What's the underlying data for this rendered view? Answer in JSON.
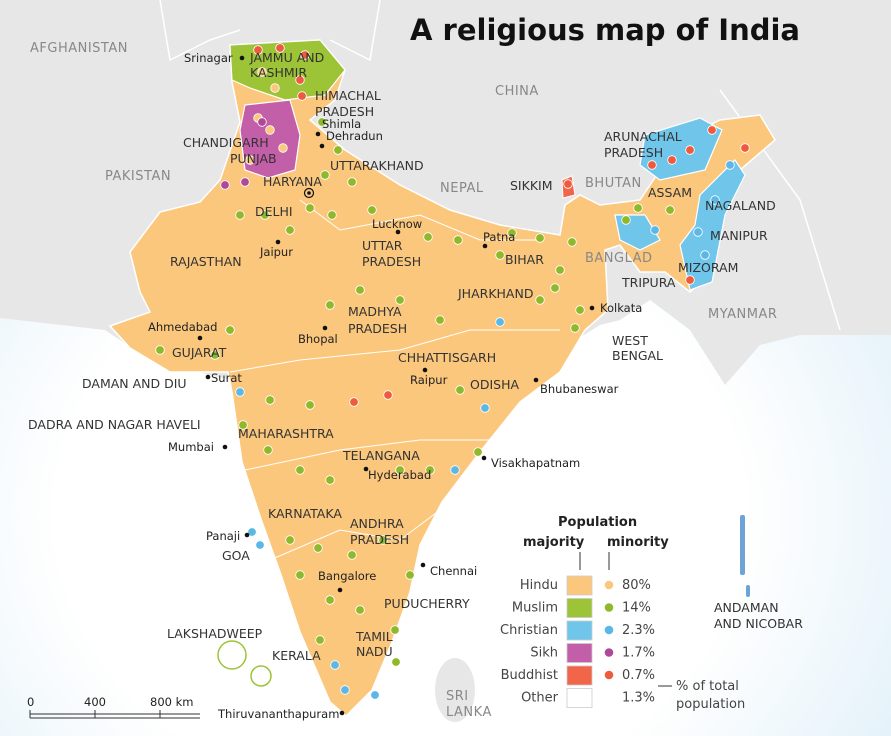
{
  "title": "A religious map of India",
  "countries": [
    {
      "lines": [
        "AFGHANISTAN"
      ]
    },
    {
      "lines": [
        "PAKISTAN"
      ]
    },
    {
      "lines": [
        "CHINA"
      ]
    },
    {
      "lines": [
        "NEPAL"
      ]
    },
    {
      "lines": [
        "BHUTAN"
      ]
    },
    {
      "lines": [
        "BANGLAD"
      ]
    },
    {
      "lines": [
        "MYANMAR"
      ]
    },
    {
      "lines": [
        "SRI",
        "LANKA"
      ]
    }
  ],
  "states": [
    {
      "lines": [
        "JAMMU AND",
        "KASHMIR"
      ]
    },
    {
      "lines": [
        "HIMACHAL",
        "PRADESH"
      ]
    },
    {
      "lines": [
        "CHANDIGARH"
      ]
    },
    {
      "lines": [
        "PUNJAB"
      ]
    },
    {
      "lines": [
        "HARYANA"
      ]
    },
    {
      "lines": [
        "DELHI"
      ]
    },
    {
      "lines": [
        "UTTARAKHAND"
      ]
    },
    {
      "lines": [
        "RAJASTHAN"
      ]
    },
    {
      "lines": [
        "UTTAR",
        "PRADESH"
      ]
    },
    {
      "lines": [
        "BIHAR"
      ]
    },
    {
      "lines": [
        "SIKKIM"
      ]
    },
    {
      "lines": [
        "ARUNACHAL",
        "PRADESH"
      ]
    },
    {
      "lines": [
        "ASSAM"
      ]
    },
    {
      "lines": [
        "NAGALAND"
      ]
    },
    {
      "lines": [
        "MANIPUR"
      ]
    },
    {
      "lines": [
        "MIZORAM"
      ]
    },
    {
      "lines": [
        "TRIPURA"
      ]
    },
    {
      "lines": [
        "JHARKHAND"
      ]
    },
    {
      "lines": [
        "WEST",
        "BENGAL"
      ]
    },
    {
      "lines": [
        "MADHYA",
        "PRADESH"
      ]
    },
    {
      "lines": [
        "GUJARAT"
      ]
    },
    {
      "lines": [
        "DAMAN AND DIU"
      ]
    },
    {
      "lines": [
        "DADRA AND NAGAR HAVELI"
      ]
    },
    {
      "lines": [
        "CHHATTISGARH"
      ]
    },
    {
      "lines": [
        "ODISHA"
      ]
    },
    {
      "lines": [
        "MAHARASHTRA"
      ]
    },
    {
      "lines": [
        "TELANGANA"
      ]
    },
    {
      "lines": [
        "ANDHRA",
        "PRADESH"
      ]
    },
    {
      "lines": [
        "KARNATAKA"
      ]
    },
    {
      "lines": [
        "GOA"
      ]
    },
    {
      "lines": [
        "KERALA"
      ]
    },
    {
      "lines": [
        "TAMIL",
        "NADU"
      ]
    },
    {
      "lines": [
        "PUDUCHERRY"
      ]
    },
    {
      "lines": [
        "LAKSHADWEEP"
      ]
    },
    {
      "lines": [
        "ANDAMAN",
        "AND NICOBAR"
      ]
    }
  ],
  "cities": [
    "Srinagar",
    "Shimla",
    "Dehradun",
    "Lucknow",
    "Jaipur",
    "Patna",
    "Kolkata",
    "Ahmedabad",
    "Bhopal",
    "Surat",
    "Raipur",
    "Bhubaneswar",
    "Mumbai",
    "Hyderabad",
    "Visakhapatnam",
    "Panaji",
    "Chennai",
    "Bangalore",
    "Thiruvananthapuram"
  ],
  "scale": [
    "0",
    "400",
    "800 km"
  ],
  "legend": {
    "heading": "Population",
    "majority": "majority",
    "minority": "minority",
    "rows": [
      {
        "religion": "Hindu",
        "share": "80%"
      },
      {
        "religion": "Muslim",
        "share": "14%"
      },
      {
        "religion": "Christian",
        "share": "2.3%"
      },
      {
        "religion": "Sikh",
        "share": "1.7%"
      },
      {
        "religion": "Buddhist",
        "share": "0.7%"
      },
      {
        "religion": "Other",
        "share": "1.3%"
      }
    ],
    "note": [
      "% of total",
      "population"
    ]
  }
}
